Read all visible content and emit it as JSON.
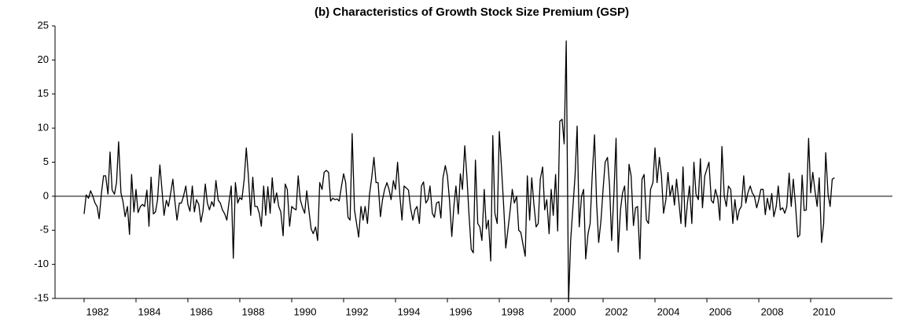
{
  "chart_data": {
    "type": "line",
    "title": "(b) Characteristics of Growth Stock Size Premium (GSP)",
    "xlim": [
      1980.88,
      2013.15
    ],
    "xticks": [
      1982,
      1984,
      1986,
      1988,
      1990,
      1992,
      1994,
      1996,
      1998,
      2000,
      2002,
      2004,
      2006,
      2008,
      2010
    ],
    "ylim": [
      -15,
      25
    ],
    "yticks": [
      -15,
      -10,
      -5,
      0,
      5,
      10,
      15,
      20,
      25
    ],
    "zero_line": true,
    "x": [
      1982.0,
      1982.08,
      1982.17,
      1982.25,
      1982.33,
      1982.42,
      1982.5,
      1982.58,
      1982.67,
      1982.75,
      1982.83,
      1982.92,
      1983.0,
      1983.08,
      1983.17,
      1983.25,
      1983.33,
      1983.42,
      1983.5,
      1983.58,
      1983.67,
      1983.75,
      1983.83,
      1983.92,
      1984.0,
      1984.08,
      1984.17,
      1984.25,
      1984.33,
      1984.42,
      1984.5,
      1984.58,
      1984.67,
      1984.75,
      1984.83,
      1984.92,
      1985.0,
      1985.08,
      1985.17,
      1985.25,
      1985.33,
      1985.42,
      1985.5,
      1985.58,
      1985.67,
      1985.75,
      1985.83,
      1985.92,
      1986.0,
      1986.08,
      1986.17,
      1986.25,
      1986.33,
      1986.42,
      1986.5,
      1986.58,
      1986.67,
      1986.75,
      1986.83,
      1986.92,
      1987.0,
      1987.08,
      1987.17,
      1987.25,
      1987.33,
      1987.42,
      1987.5,
      1987.58,
      1987.67,
      1987.75,
      1987.83,
      1987.92,
      1988.0,
      1988.08,
      1988.17,
      1988.25,
      1988.33,
      1988.42,
      1988.5,
      1988.58,
      1988.67,
      1988.75,
      1988.83,
      1988.92,
      1989.0,
      1989.08,
      1989.17,
      1989.25,
      1989.33,
      1989.42,
      1989.5,
      1989.58,
      1989.67,
      1989.75,
      1989.83,
      1989.92,
      1990.0,
      1990.08,
      1990.17,
      1990.25,
      1990.33,
      1990.42,
      1990.5,
      1990.58,
      1990.67,
      1990.75,
      1990.83,
      1990.92,
      1991.0,
      1991.08,
      1991.17,
      1991.25,
      1991.33,
      1991.42,
      1991.5,
      1991.58,
      1991.67,
      1991.75,
      1991.83,
      1991.92,
      1992.0,
      1992.08,
      1992.17,
      1992.25,
      1992.33,
      1992.42,
      1992.5,
      1992.58,
      1992.67,
      1992.75,
      1992.83,
      1992.92,
      1993.0,
      1993.08,
      1993.17,
      1993.25,
      1993.33,
      1993.42,
      1993.5,
      1993.58,
      1993.67,
      1993.75,
      1993.83,
      1993.92,
      1994.0,
      1994.08,
      1994.17,
      1994.25,
      1994.33,
      1994.42,
      1994.5,
      1994.58,
      1994.67,
      1994.75,
      1994.83,
      1994.92,
      1995.0,
      1995.08,
      1995.17,
      1995.25,
      1995.33,
      1995.42,
      1995.5,
      1995.58,
      1995.67,
      1995.75,
      1995.83,
      1995.92,
      1996.0,
      1996.08,
      1996.17,
      1996.25,
      1996.33,
      1996.42,
      1996.5,
      1996.58,
      1996.67,
      1996.75,
      1996.83,
      1996.92,
      1997.0,
      1997.08,
      1997.17,
      1997.25,
      1997.33,
      1997.42,
      1997.5,
      1997.58,
      1997.67,
      1997.75,
      1997.83,
      1997.92,
      1998.0,
      1998.08,
      1998.17,
      1998.25,
      1998.33,
      1998.42,
      1998.5,
      1998.58,
      1998.67,
      1998.75,
      1998.83,
      1998.92,
      1999.0,
      1999.08,
      1999.17,
      1999.25,
      1999.33,
      1999.42,
      1999.5,
      1999.58,
      1999.67,
      1999.75,
      1999.83,
      1999.92,
      2000.0,
      2000.08,
      2000.17,
      2000.25,
      2000.33,
      2000.42,
      2000.5,
      2000.58,
      2000.67,
      2000.75,
      2000.83,
      2000.92,
      2001.0,
      2001.08,
      2001.17,
      2001.25,
      2001.33,
      2001.42,
      2001.5,
      2001.58,
      2001.67,
      2001.75,
      2001.83,
      2001.92,
      2002.0,
      2002.08,
      2002.17,
      2002.25,
      2002.33,
      2002.42,
      2002.5,
      2002.58,
      2002.67,
      2002.75,
      2002.83,
      2002.92,
      2003.0,
      2003.08,
      2003.17,
      2003.25,
      2003.33,
      2003.42,
      2003.5,
      2003.58,
      2003.67,
      2003.75,
      2003.83,
      2003.92,
      2004.0,
      2004.08,
      2004.17,
      2004.25,
      2004.33,
      2004.42,
      2004.5,
      2004.58,
      2004.67,
      2004.75,
      2004.83,
      2004.92,
      2005.0,
      2005.08,
      2005.17,
      2005.25,
      2005.33,
      2005.42,
      2005.5,
      2005.58,
      2005.67,
      2005.75,
      2005.83,
      2005.92,
      2006.0,
      2006.08,
      2006.17,
      2006.25,
      2006.33,
      2006.42,
      2006.5,
      2006.58,
      2006.67,
      2006.75,
      2006.83,
      2006.92,
      2007.0,
      2007.08,
      2007.17,
      2007.25,
      2007.33,
      2007.42,
      2007.5,
      2007.58,
      2007.67,
      2007.75,
      2007.83,
      2007.92,
      2008.0,
      2008.08,
      2008.17,
      2008.25,
      2008.33,
      2008.42,
      2008.5,
      2008.58,
      2008.67,
      2008.75,
      2008.83,
      2008.92,
      2009.0,
      2009.08,
      2009.17,
      2009.25,
      2009.33,
      2009.42,
      2009.5,
      2009.58,
      2009.67,
      2009.75,
      2009.83,
      2009.92,
      2010.0,
      2010.08,
      2010.17,
      2010.25,
      2010.33,
      2010.42,
      2010.5,
      2010.58,
      2010.67,
      2010.75,
      2010.83,
      2010.92
    ],
    "series": [
      {
        "name": "GSP",
        "color": "#000000",
        "values": [
          -2.6,
          0.2,
          -0.3,
          0.8,
          0.1,
          -1,
          -1.5,
          -3.3,
          0.5,
          3,
          3,
          0.3,
          6.5,
          0.9,
          0.3,
          2,
          8,
          0.5,
          -0.8,
          -3,
          -1.5,
          -5.6,
          3.2,
          -2.3,
          1,
          -2.4,
          -1.5,
          -1.2,
          -1.5,
          0.9,
          -4.4,
          2.8,
          -2.6,
          -2.3,
          -0.5,
          4.6,
          1,
          -2.8,
          -0.6,
          -1.5,
          0.3,
          2.5,
          -0.8,
          -3.5,
          -1,
          -1,
          0,
          1.5,
          -1.2,
          -2.2,
          1.5,
          -2.3,
          -0.5,
          -1.2,
          -3.8,
          -2.2,
          1.8,
          -1,
          -2,
          -0.8,
          -1.5,
          2.3,
          -0.6,
          -1,
          -2,
          -2.6,
          -3.5,
          -1,
          1.5,
          -9.1,
          2,
          -1,
          -0.2,
          -0.5,
          2.5,
          7.1,
          3,
          -2.8,
          2.8,
          -1.5,
          -1.5,
          -2.5,
          -4.4,
          1.5,
          -2.8,
          1.4,
          -2.5,
          2.7,
          -1,
          0.5,
          -1.5,
          -2.3,
          -5.8,
          1.8,
          1,
          -4.4,
          -1.5,
          -1.8,
          -2,
          3,
          -0.5,
          -1.7,
          -2.5,
          0.8,
          -2.3,
          -4.8,
          -5.5,
          -4.5,
          -6.5,
          2,
          1,
          3.5,
          3.8,
          3.5,
          -0.7,
          -0.3,
          -0.5,
          -0.4,
          -0.7,
          1.5,
          3.3,
          2,
          -3.1,
          -3.5,
          9.2,
          -2,
          -4,
          -6,
          -1.5,
          -3.5,
          -1.5,
          -4,
          0.3,
          2.6,
          5.7,
          2,
          2,
          -3,
          -0.5,
          1,
          2,
          1,
          -0.5,
          2.3,
          1,
          5,
          0,
          -3.5,
          1.5,
          1.2,
          0.9,
          -1.7,
          -3.5,
          -2,
          -1.5,
          -4,
          1.5,
          2.1,
          -1,
          -0.5,
          1.5,
          -2.5,
          -3.1,
          -1,
          -0.8,
          -3.2,
          2.7,
          4.5,
          3,
          -0.5,
          -5.9,
          -1.5,
          1.5,
          -2.6,
          3.3,
          1,
          7.4,
          3,
          -2.5,
          -7.8,
          -8.3,
          5.3,
          -4,
          -4.5,
          -6.5,
          1,
          -4.8,
          -3.5,
          -9.5,
          8.9,
          -2.5,
          -4,
          9.5,
          4.5,
          -1.5,
          -7.6,
          -5,
          -2,
          1,
          -1,
          0,
          -5,
          -5.3,
          -7.2,
          -8.8,
          3,
          -3.5,
          2.7,
          -1,
          -4.5,
          -4,
          2.5,
          4.3,
          -2,
          -0.5,
          -5.5,
          1,
          -2.8,
          3.2,
          -5.1,
          11,
          11.3,
          7.7,
          22.8,
          -15.5,
          -6.5,
          -2,
          3,
          10.3,
          -4.5,
          0,
          1,
          -9.2,
          -5.5,
          -4,
          3,
          9,
          -1,
          -6.8,
          -3.5,
          1,
          5,
          5.7,
          1.5,
          -6.5,
          0.6,
          8.5,
          -8.2,
          -2,
          0.5,
          1.5,
          -5,
          4.7,
          3,
          -4.3,
          -1.7,
          -1.5,
          -9.2,
          2.5,
          3.2,
          -3.5,
          -4,
          1,
          2,
          7.1,
          2,
          5.7,
          3,
          -2.5,
          -0.5,
          3.5,
          0,
          1.6,
          -1.3,
          2.5,
          -0.8,
          -4,
          4.3,
          -4.5,
          -1,
          1.5,
          -4,
          5,
          0.3,
          -0.5,
          5.5,
          -1.7,
          3,
          4,
          5,
          -0.6,
          -1,
          1,
          -0.3,
          -3.5,
          7.3,
          0,
          -1.5,
          1.5,
          1,
          -4,
          -0.5,
          -3.5,
          -2,
          -1.5,
          3,
          -1,
          0.5,
          1.5,
          0.5,
          0,
          -1.7,
          -0.5,
          1,
          1,
          -2.7,
          -0.3,
          -2,
          0.4,
          -3,
          -1.5,
          1.5,
          -2,
          -1.7,
          -2.5,
          -1.5,
          3.4,
          -1.5,
          2.5,
          -1.5,
          -6,
          -5.7,
          3.1,
          -2.1,
          -2,
          8.5,
          0.5,
          3.5,
          0.7,
          -1.5,
          2.7,
          -6.8,
          -4,
          6.4,
          0.3,
          -1.5,
          2.5,
          2.7
        ]
      }
    ]
  }
}
